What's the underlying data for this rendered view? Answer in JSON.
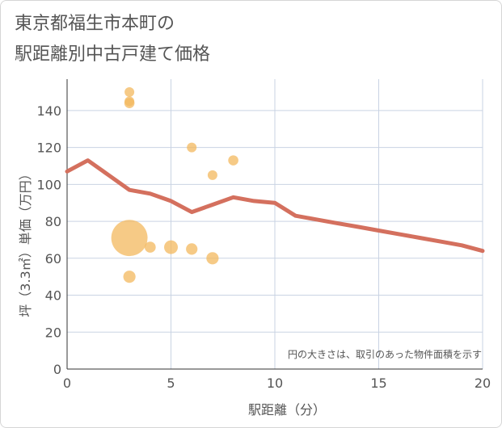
{
  "header": {
    "title_line1": "東京都福生市本町の",
    "title_line2": "駅距離別中古戸建て価格"
  },
  "chart_data": {
    "type": "scatter",
    "xlabel": "駅距離（分）",
    "ylabel": "坪（3.3㎡）単価（万円）",
    "xlim": [
      0,
      20
    ],
    "ylim": [
      0,
      157
    ],
    "x_ticks": [
      0,
      5,
      10,
      15,
      20
    ],
    "y_ticks": [
      0,
      20,
      40,
      60,
      80,
      100,
      120,
      140
    ],
    "grid": true,
    "note": "円の大きさは、取引のあった物件面積を示す",
    "colors": {
      "bubble": "#f3b85e",
      "line": "#d4705e",
      "grid": "#c9d3e3"
    },
    "points": [
      {
        "x": 3,
        "y": 150,
        "size": 1
      },
      {
        "x": 3,
        "y": 145,
        "size": 1
      },
      {
        "x": 3,
        "y": 144,
        "size": 1.1
      },
      {
        "x": 3,
        "y": 71,
        "size": 14
      },
      {
        "x": 3,
        "y": 50,
        "size": 1.6
      },
      {
        "x": 4,
        "y": 66,
        "size": 1.3
      },
      {
        "x": 5,
        "y": 66,
        "size": 2
      },
      {
        "x": 6,
        "y": 120,
        "size": 1
      },
      {
        "x": 6,
        "y": 65,
        "size": 1.4
      },
      {
        "x": 7,
        "y": 105,
        "size": 1
      },
      {
        "x": 7,
        "y": 60,
        "size": 1.6
      },
      {
        "x": 8,
        "y": 113,
        "size": 1.1
      }
    ],
    "series": [
      {
        "x": [
          0,
          1,
          2,
          3,
          4,
          5,
          6,
          7,
          8,
          9,
          10,
          11,
          12,
          13,
          14,
          15,
          16,
          17,
          18,
          19,
          20
        ],
        "values": [
          107,
          113,
          105,
          97,
          95,
          91,
          85,
          89,
          93,
          91,
          90,
          83,
          81,
          79,
          77,
          75,
          73,
          71,
          69,
          67,
          64
        ]
      }
    ]
  }
}
